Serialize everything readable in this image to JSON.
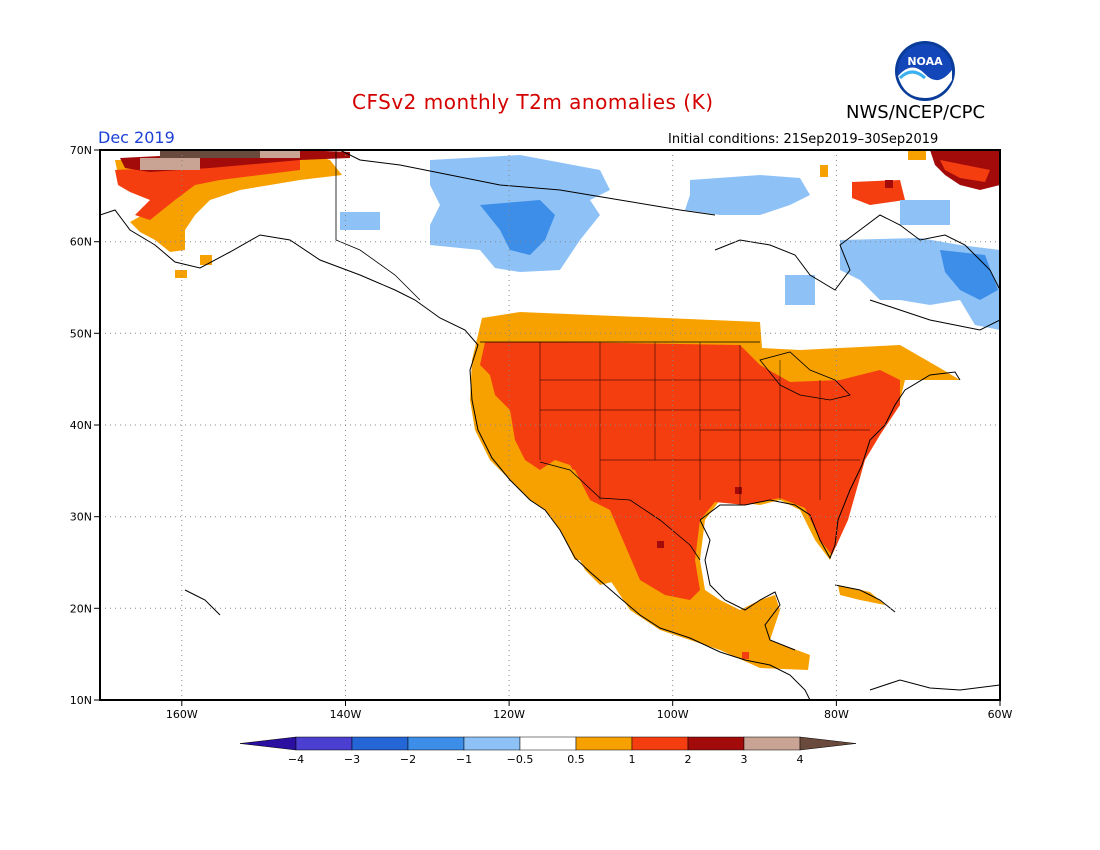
{
  "title": "CFSv2 monthly T2m anomalies (K)",
  "agency": "NWS/NCEP/CPC",
  "logo_text": "NOAA",
  "month": "Dec 2019",
  "initial_conditions": "Initial conditions: 21Sep2019–30Sep2019",
  "lat_labels": [
    "70N",
    "60N",
    "50N",
    "40N",
    "30N",
    "20N",
    "10N"
  ],
  "lon_labels": [
    "160W",
    "140W",
    "120W",
    "100W",
    "80W",
    "60W"
  ],
  "colorbar": {
    "labels": [
      "−4",
      "−3",
      "−2",
      "−1",
      "−0.5",
      "0.5",
      "1",
      "2",
      "3",
      "4"
    ],
    "colors": [
      "#2a0fa0",
      "#4a3fd0",
      "#2566d6",
      "#3d8ee8",
      "#8ec2f6",
      "#ffffff",
      "#f7a100",
      "#f53e10",
      "#a30b0b",
      "#c9a393",
      "#6a4a3c"
    ]
  }
}
